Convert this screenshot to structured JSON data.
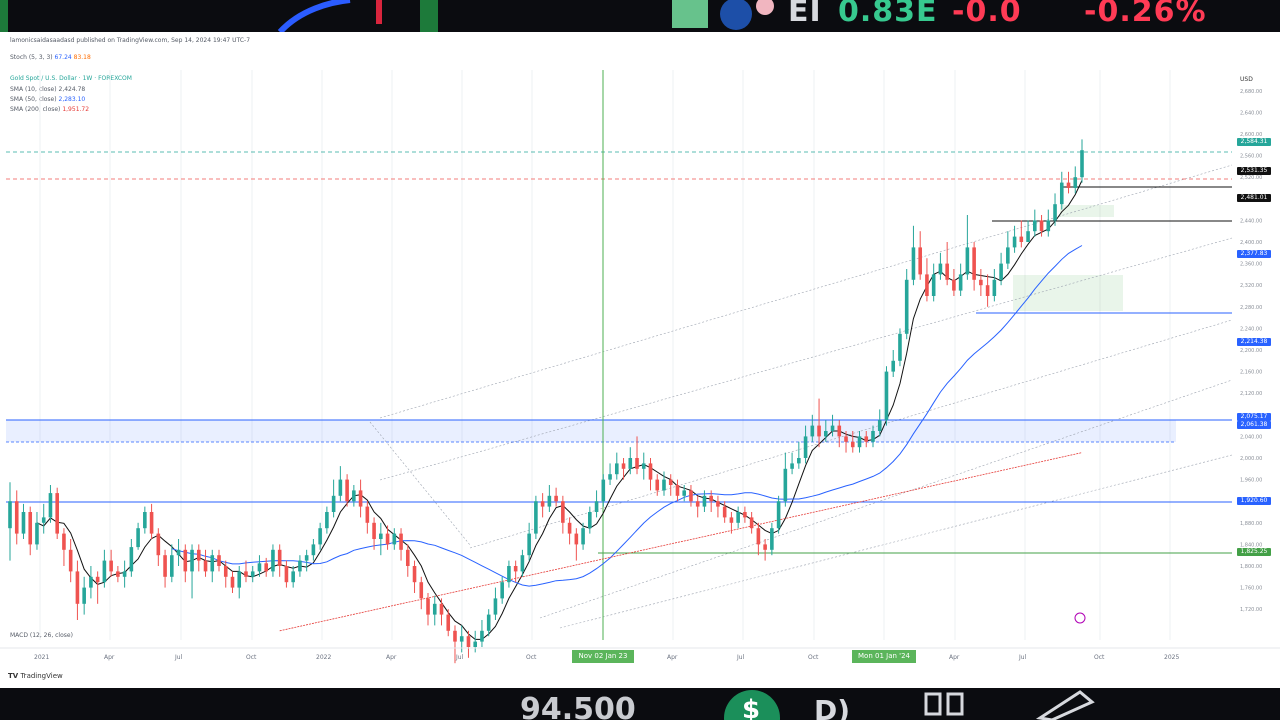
{
  "top_bar": {
    "ticker_prefix": "EI",
    "last_value": "0.83E",
    "change": "-0.0",
    "change_pct": "-0.26%"
  },
  "chart_header": {
    "publisher_line": "lamonicsaidasaadasd published on TradingView.com, Sep 14, 2024 19:47 UTC-7",
    "stoch_label": "Stoch (5, 3, 3)",
    "stoch_values": [
      "67.24",
      "83.18"
    ],
    "symbol_line": "Gold Spot / U.S. Dollar · 1W · FOREXCOM",
    "ma_lines": [
      {
        "label": "SMA (10, close)",
        "value": "2,424.78"
      },
      {
        "label": "SMA (50, close)",
        "value": "2,283.10"
      },
      {
        "label": "SMA (200, close)",
        "value": "1,951.72"
      }
    ],
    "indicator_line": "MACD (12, 26, close)"
  },
  "chart_data": {
    "type": "candlestick",
    "symbol": "Gold Spot / U.S. Dollar",
    "timeframe": "1W",
    "currency": "USD",
    "y_ticks": [
      "2,680.00",
      "2,640.00",
      "2,600.00",
      "2,560.00",
      "2,520.00",
      "2,480.00",
      "2,440.00",
      "2,400.00",
      "2,360.00",
      "2,320.00",
      "2,280.00",
      "2,240.00",
      "2,200.00",
      "2,160.00",
      "2,120.00",
      "2,080.00",
      "2,040.00",
      "2,000.00",
      "1,960.00",
      "1,920.00",
      "1,880.00",
      "1,840.00",
      "1,800.00",
      "1,760.00",
      "1,720.00"
    ],
    "x_ticks": [
      "2021",
      "Apr",
      "Jul",
      "Oct",
      "2022",
      "Apr",
      "Jul",
      "Oct",
      "Nov 02 Jan 23",
      "Apr",
      "Jul",
      "Oct",
      "Mon 01 Jan '24",
      "Apr",
      "Jul",
      "Oct",
      "2025"
    ],
    "price_tags": [
      {
        "value": "2,584.31",
        "color": "#26a69a"
      },
      {
        "value": "2,531.35",
        "color": "#111111"
      },
      {
        "value": "2,481.01",
        "color": "#111111"
      },
      {
        "value": "2,377.83",
        "color": "#2962ff"
      },
      {
        "value": "2,214.38",
        "color": "#2962ff"
      },
      {
        "value": "2,075.17",
        "color": "#2962ff"
      },
      {
        "value": "2,061.38",
        "color": "#2962ff"
      },
      {
        "value": "1,920.60",
        "color": "#2962ff"
      },
      {
        "value": "1,825.25",
        "color": "#43a047"
      }
    ],
    "candles": [
      {
        "o": 1870,
        "c": 1920,
        "h": 1955,
        "l": 1810
      },
      {
        "o": 1920,
        "c": 1860,
        "h": 1940,
        "l": 1840
      },
      {
        "o": 1860,
        "c": 1900,
        "h": 1915,
        "l": 1850
      },
      {
        "o": 1900,
        "c": 1840,
        "h": 1910,
        "l": 1820
      },
      {
        "o": 1840,
        "c": 1880,
        "h": 1900,
        "l": 1830
      },
      {
        "o": 1880,
        "c": 1890,
        "h": 1915,
        "l": 1860
      },
      {
        "o": 1890,
        "c": 1935,
        "h": 1950,
        "l": 1880
      },
      {
        "o": 1935,
        "c": 1860,
        "h": 1945,
        "l": 1850
      },
      {
        "o": 1860,
        "c": 1830,
        "h": 1870,
        "l": 1800
      },
      {
        "o": 1830,
        "c": 1790,
        "h": 1850,
        "l": 1770
      },
      {
        "o": 1790,
        "c": 1730,
        "h": 1810,
        "l": 1700
      },
      {
        "o": 1730,
        "c": 1760,
        "h": 1780,
        "l": 1710
      },
      {
        "o": 1760,
        "c": 1780,
        "h": 1800,
        "l": 1740
      },
      {
        "o": 1780,
        "c": 1770,
        "h": 1790,
        "l": 1730
      },
      {
        "o": 1770,
        "c": 1810,
        "h": 1830,
        "l": 1760
      },
      {
        "o": 1810,
        "c": 1790,
        "h": 1830,
        "l": 1780
      },
      {
        "o": 1790,
        "c": 1780,
        "h": 1800,
        "l": 1770
      },
      {
        "o": 1780,
        "c": 1790,
        "h": 1810,
        "l": 1760
      },
      {
        "o": 1790,
        "c": 1835,
        "h": 1850,
        "l": 1780
      },
      {
        "o": 1835,
        "c": 1870,
        "h": 1880,
        "l": 1830
      },
      {
        "o": 1870,
        "c": 1900,
        "h": 1910,
        "l": 1860
      },
      {
        "o": 1900,
        "c": 1860,
        "h": 1915,
        "l": 1850
      },
      {
        "o": 1860,
        "c": 1820,
        "h": 1870,
        "l": 1800
      },
      {
        "o": 1820,
        "c": 1780,
        "h": 1830,
        "l": 1760
      },
      {
        "o": 1780,
        "c": 1820,
        "h": 1840,
        "l": 1770
      },
      {
        "o": 1820,
        "c": 1830,
        "h": 1850,
        "l": 1800
      },
      {
        "o": 1830,
        "c": 1790,
        "h": 1840,
        "l": 1770
      },
      {
        "o": 1790,
        "c": 1830,
        "h": 1840,
        "l": 1740
      },
      {
        "o": 1830,
        "c": 1810,
        "h": 1840,
        "l": 1790
      },
      {
        "o": 1810,
        "c": 1790,
        "h": 1830,
        "l": 1780
      },
      {
        "o": 1790,
        "c": 1820,
        "h": 1830,
        "l": 1770
      },
      {
        "o": 1820,
        "c": 1800,
        "h": 1830,
        "l": 1790
      },
      {
        "o": 1800,
        "c": 1780,
        "h": 1810,
        "l": 1760
      },
      {
        "o": 1780,
        "c": 1760,
        "h": 1790,
        "l": 1750
      },
      {
        "o": 1760,
        "c": 1790,
        "h": 1800,
        "l": 1740
      },
      {
        "o": 1790,
        "c": 1780,
        "h": 1810,
        "l": 1770
      },
      {
        "o": 1780,
        "c": 1790,
        "h": 1800,
        "l": 1770
      },
      {
        "o": 1790,
        "c": 1805,
        "h": 1820,
        "l": 1780
      },
      {
        "o": 1805,
        "c": 1790,
        "h": 1815,
        "l": 1780
      },
      {
        "o": 1790,
        "c": 1830,
        "h": 1840,
        "l": 1780
      },
      {
        "o": 1830,
        "c": 1800,
        "h": 1840,
        "l": 1780
      },
      {
        "o": 1800,
        "c": 1770,
        "h": 1810,
        "l": 1760
      },
      {
        "o": 1770,
        "c": 1790,
        "h": 1800,
        "l": 1760
      },
      {
        "o": 1790,
        "c": 1810,
        "h": 1820,
        "l": 1780
      },
      {
        "o": 1810,
        "c": 1820,
        "h": 1830,
        "l": 1790
      },
      {
        "o": 1820,
        "c": 1840,
        "h": 1850,
        "l": 1810
      },
      {
        "o": 1840,
        "c": 1870,
        "h": 1880,
        "l": 1830
      },
      {
        "o": 1870,
        "c": 1900,
        "h": 1910,
        "l": 1860
      },
      {
        "o": 1900,
        "c": 1930,
        "h": 1960,
        "l": 1890
      },
      {
        "o": 1930,
        "c": 1960,
        "h": 1985,
        "l": 1920
      },
      {
        "o": 1960,
        "c": 1920,
        "h": 1970,
        "l": 1910
      },
      {
        "o": 1920,
        "c": 1940,
        "h": 1950,
        "l": 1910
      },
      {
        "o": 1940,
        "c": 1910,
        "h": 1960,
        "l": 1890
      },
      {
        "o": 1910,
        "c": 1880,
        "h": 1920,
        "l": 1860
      },
      {
        "o": 1880,
        "c": 1850,
        "h": 1890,
        "l": 1830
      },
      {
        "o": 1850,
        "c": 1860,
        "h": 1880,
        "l": 1820
      },
      {
        "o": 1860,
        "c": 1840,
        "h": 1875,
        "l": 1830
      },
      {
        "o": 1840,
        "c": 1860,
        "h": 1870,
        "l": 1830
      },
      {
        "o": 1860,
        "c": 1830,
        "h": 1870,
        "l": 1810
      },
      {
        "o": 1830,
        "c": 1800,
        "h": 1840,
        "l": 1780
      },
      {
        "o": 1800,
        "c": 1770,
        "h": 1810,
        "l": 1750
      },
      {
        "o": 1770,
        "c": 1740,
        "h": 1780,
        "l": 1720
      },
      {
        "o": 1740,
        "c": 1710,
        "h": 1750,
        "l": 1690
      },
      {
        "o": 1710,
        "c": 1730,
        "h": 1745,
        "l": 1690
      },
      {
        "o": 1730,
        "c": 1710,
        "h": 1740,
        "l": 1690
      },
      {
        "o": 1710,
        "c": 1680,
        "h": 1720,
        "l": 1670
      },
      {
        "o": 1680,
        "c": 1660,
        "h": 1690,
        "l": 1620
      },
      {
        "o": 1660,
        "c": 1670,
        "h": 1690,
        "l": 1640
      },
      {
        "o": 1670,
        "c": 1650,
        "h": 1680,
        "l": 1630
      },
      {
        "o": 1650,
        "c": 1660,
        "h": 1680,
        "l": 1640
      },
      {
        "o": 1660,
        "c": 1680,
        "h": 1700,
        "l": 1650
      },
      {
        "o": 1680,
        "c": 1710,
        "h": 1720,
        "l": 1670
      },
      {
        "o": 1710,
        "c": 1740,
        "h": 1760,
        "l": 1700
      },
      {
        "o": 1740,
        "c": 1770,
        "h": 1780,
        "l": 1730
      },
      {
        "o": 1770,
        "c": 1800,
        "h": 1810,
        "l": 1760
      },
      {
        "o": 1800,
        "c": 1790,
        "h": 1810,
        "l": 1770
      },
      {
        "o": 1790,
        "c": 1820,
        "h": 1830,
        "l": 1780
      },
      {
        "o": 1820,
        "c": 1860,
        "h": 1880,
        "l": 1810
      },
      {
        "o": 1860,
        "c": 1920,
        "h": 1930,
        "l": 1850
      },
      {
        "o": 1920,
        "c": 1910,
        "h": 1935,
        "l": 1890
      },
      {
        "o": 1910,
        "c": 1930,
        "h": 1950,
        "l": 1900
      },
      {
        "o": 1930,
        "c": 1920,
        "h": 1945,
        "l": 1910
      },
      {
        "o": 1920,
        "c": 1880,
        "h": 1930,
        "l": 1860
      },
      {
        "o": 1880,
        "c": 1860,
        "h": 1890,
        "l": 1840
      },
      {
        "o": 1860,
        "c": 1840,
        "h": 1870,
        "l": 1810
      },
      {
        "o": 1840,
        "c": 1870,
        "h": 1880,
        "l": 1830
      },
      {
        "o": 1870,
        "c": 1900,
        "h": 1910,
        "l": 1860
      },
      {
        "o": 1900,
        "c": 1920,
        "h": 1940,
        "l": 1890
      },
      {
        "o": 1920,
        "c": 1960,
        "h": 1970,
        "l": 1910
      },
      {
        "o": 1960,
        "c": 1970,
        "h": 1990,
        "l": 1950
      },
      {
        "o": 1970,
        "c": 1990,
        "h": 2010,
        "l": 1960
      },
      {
        "o": 1990,
        "c": 1980,
        "h": 2000,
        "l": 1960
      },
      {
        "o": 1980,
        "c": 2000,
        "h": 2020,
        "l": 1970
      },
      {
        "o": 2000,
        "c": 1980,
        "h": 2040,
        "l": 1970
      },
      {
        "o": 1980,
        "c": 1990,
        "h": 2010,
        "l": 1960
      },
      {
        "o": 1990,
        "c": 1960,
        "h": 2000,
        "l": 1940
      },
      {
        "o": 1960,
        "c": 1940,
        "h": 1970,
        "l": 1930
      },
      {
        "o": 1940,
        "c": 1960,
        "h": 1975,
        "l": 1930
      },
      {
        "o": 1960,
        "c": 1950,
        "h": 1970,
        "l": 1930
      },
      {
        "o": 1950,
        "c": 1930,
        "h": 1960,
        "l": 1920
      },
      {
        "o": 1930,
        "c": 1940,
        "h": 1950,
        "l": 1920
      },
      {
        "o": 1940,
        "c": 1920,
        "h": 1950,
        "l": 1910
      },
      {
        "o": 1920,
        "c": 1910,
        "h": 1930,
        "l": 1890
      },
      {
        "o": 1910,
        "c": 1930,
        "h": 1940,
        "l": 1900
      },
      {
        "o": 1930,
        "c": 1920,
        "h": 1940,
        "l": 1900
      },
      {
        "o": 1920,
        "c": 1910,
        "h": 1930,
        "l": 1890
      },
      {
        "o": 1910,
        "c": 1890,
        "h": 1920,
        "l": 1880
      },
      {
        "o": 1890,
        "c": 1880,
        "h": 1900,
        "l": 1860
      },
      {
        "o": 1880,
        "c": 1900,
        "h": 1910,
        "l": 1870
      },
      {
        "o": 1900,
        "c": 1890,
        "h": 1910,
        "l": 1880
      },
      {
        "o": 1890,
        "c": 1870,
        "h": 1900,
        "l": 1860
      },
      {
        "o": 1870,
        "c": 1840,
        "h": 1880,
        "l": 1820
      },
      {
        "o": 1840,
        "c": 1830,
        "h": 1850,
        "l": 1810
      },
      {
        "o": 1830,
        "c": 1870,
        "h": 1880,
        "l": 1820
      },
      {
        "o": 1870,
        "c": 1920,
        "h": 1930,
        "l": 1860
      },
      {
        "o": 1920,
        "c": 1980,
        "h": 2010,
        "l": 1910
      },
      {
        "o": 1980,
        "c": 1990,
        "h": 2010,
        "l": 1970
      },
      {
        "o": 1990,
        "c": 2000,
        "h": 2030,
        "l": 1980
      },
      {
        "o": 2000,
        "c": 2040,
        "h": 2060,
        "l": 1990
      },
      {
        "o": 2040,
        "c": 2060,
        "h": 2080,
        "l": 2030
      },
      {
        "o": 2060,
        "c": 2040,
        "h": 2110,
        "l": 2020
      },
      {
        "o": 2040,
        "c": 2050,
        "h": 2070,
        "l": 2030
      },
      {
        "o": 2050,
        "c": 2060,
        "h": 2080,
        "l": 2040
      },
      {
        "o": 2060,
        "c": 2040,
        "h": 2070,
        "l": 2020
      },
      {
        "o": 2040,
        "c": 2030,
        "h": 2050,
        "l": 2010
      },
      {
        "o": 2030,
        "c": 2020,
        "h": 2050,
        "l": 2010
      },
      {
        "o": 2020,
        "c": 2040,
        "h": 2050,
        "l": 2010
      },
      {
        "o": 2040,
        "c": 2030,
        "h": 2050,
        "l": 2020
      },
      {
        "o": 2030,
        "c": 2050,
        "h": 2060,
        "l": 2020
      },
      {
        "o": 2050,
        "c": 2070,
        "h": 2090,
        "l": 2040
      },
      {
        "o": 2070,
        "c": 2160,
        "h": 2170,
        "l": 2060
      },
      {
        "o": 2160,
        "c": 2180,
        "h": 2200,
        "l": 2150
      },
      {
        "o": 2180,
        "c": 2230,
        "h": 2240,
        "l": 2170
      },
      {
        "o": 2230,
        "c": 2330,
        "h": 2350,
        "l": 2220
      },
      {
        "o": 2330,
        "c": 2390,
        "h": 2430,
        "l": 2320
      },
      {
        "o": 2390,
        "c": 2340,
        "h": 2420,
        "l": 2330
      },
      {
        "o": 2340,
        "c": 2300,
        "h": 2370,
        "l": 2290
      },
      {
        "o": 2300,
        "c": 2340,
        "h": 2360,
        "l": 2290
      },
      {
        "o": 2340,
        "c": 2360,
        "h": 2380,
        "l": 2330
      },
      {
        "o": 2360,
        "c": 2330,
        "h": 2400,
        "l": 2320
      },
      {
        "o": 2330,
        "c": 2310,
        "h": 2350,
        "l": 2300
      },
      {
        "o": 2310,
        "c": 2340,
        "h": 2360,
        "l": 2300
      },
      {
        "o": 2340,
        "c": 2390,
        "h": 2450,
        "l": 2330
      },
      {
        "o": 2390,
        "c": 2330,
        "h": 2400,
        "l": 2310
      },
      {
        "o": 2330,
        "c": 2320,
        "h": 2350,
        "l": 2300
      },
      {
        "o": 2320,
        "c": 2300,
        "h": 2340,
        "l": 2280
      },
      {
        "o": 2300,
        "c": 2330,
        "h": 2350,
        "l": 2290
      },
      {
        "o": 2330,
        "c": 2360,
        "h": 2380,
        "l": 2320
      },
      {
        "o": 2360,
        "c": 2390,
        "h": 2420,
        "l": 2350
      },
      {
        "o": 2390,
        "c": 2410,
        "h": 2430,
        "l": 2380
      },
      {
        "o": 2410,
        "c": 2400,
        "h": 2440,
        "l": 2390
      },
      {
        "o": 2400,
        "c": 2420,
        "h": 2440,
        "l": 2400
      },
      {
        "o": 2420,
        "c": 2440,
        "h": 2460,
        "l": 2410
      },
      {
        "o": 2440,
        "c": 2420,
        "h": 2450,
        "l": 2410
      },
      {
        "o": 2420,
        "c": 2440,
        "h": 2460,
        "l": 2410
      },
      {
        "o": 2440,
        "c": 2470,
        "h": 2490,
        "l": 2430
      },
      {
        "o": 2470,
        "c": 2510,
        "h": 2530,
        "l": 2460
      },
      {
        "o": 2510,
        "c": 2500,
        "h": 2530,
        "l": 2490
      },
      {
        "o": 2500,
        "c": 2520,
        "h": 2540,
        "l": 2490
      },
      {
        "o": 2520,
        "c": 2570,
        "h": 2590,
        "l": 2510
      }
    ],
    "x_range_weeks": [
      0,
      218
    ],
    "y_range": [
      1700,
      2700
    ]
  },
  "bottom_bar": {
    "price_text": "94.500",
    "watermark": "TradingView"
  }
}
